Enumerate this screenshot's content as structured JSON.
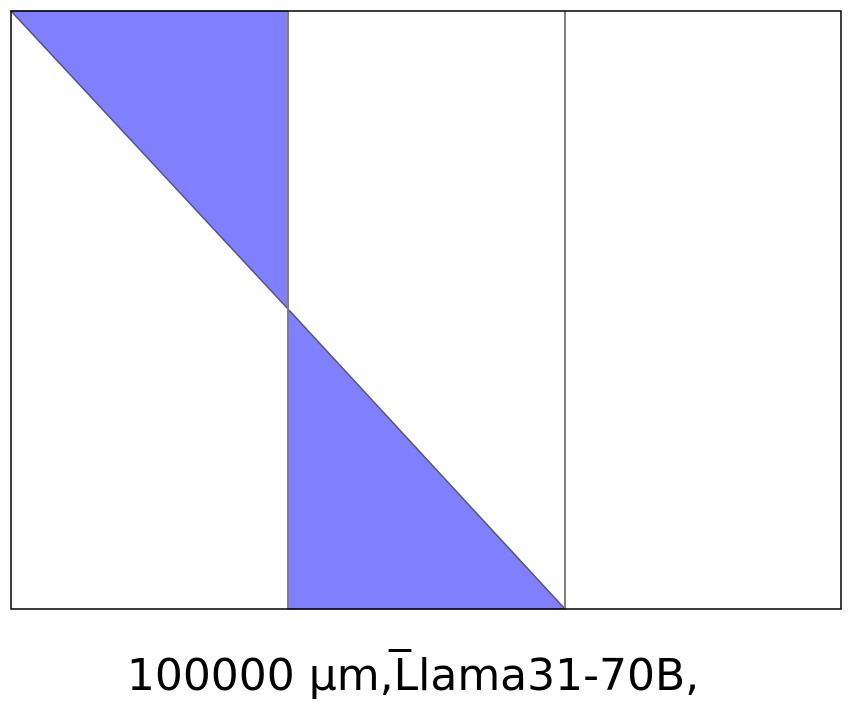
{
  "figure": {
    "caption": "100000 µm,L̅lama31-70B,",
    "colors": {
      "fill": "#8080ff",
      "edge": "#555577",
      "frame": "#000000",
      "divider": "#808080",
      "background": "#ffffff"
    }
  }
}
